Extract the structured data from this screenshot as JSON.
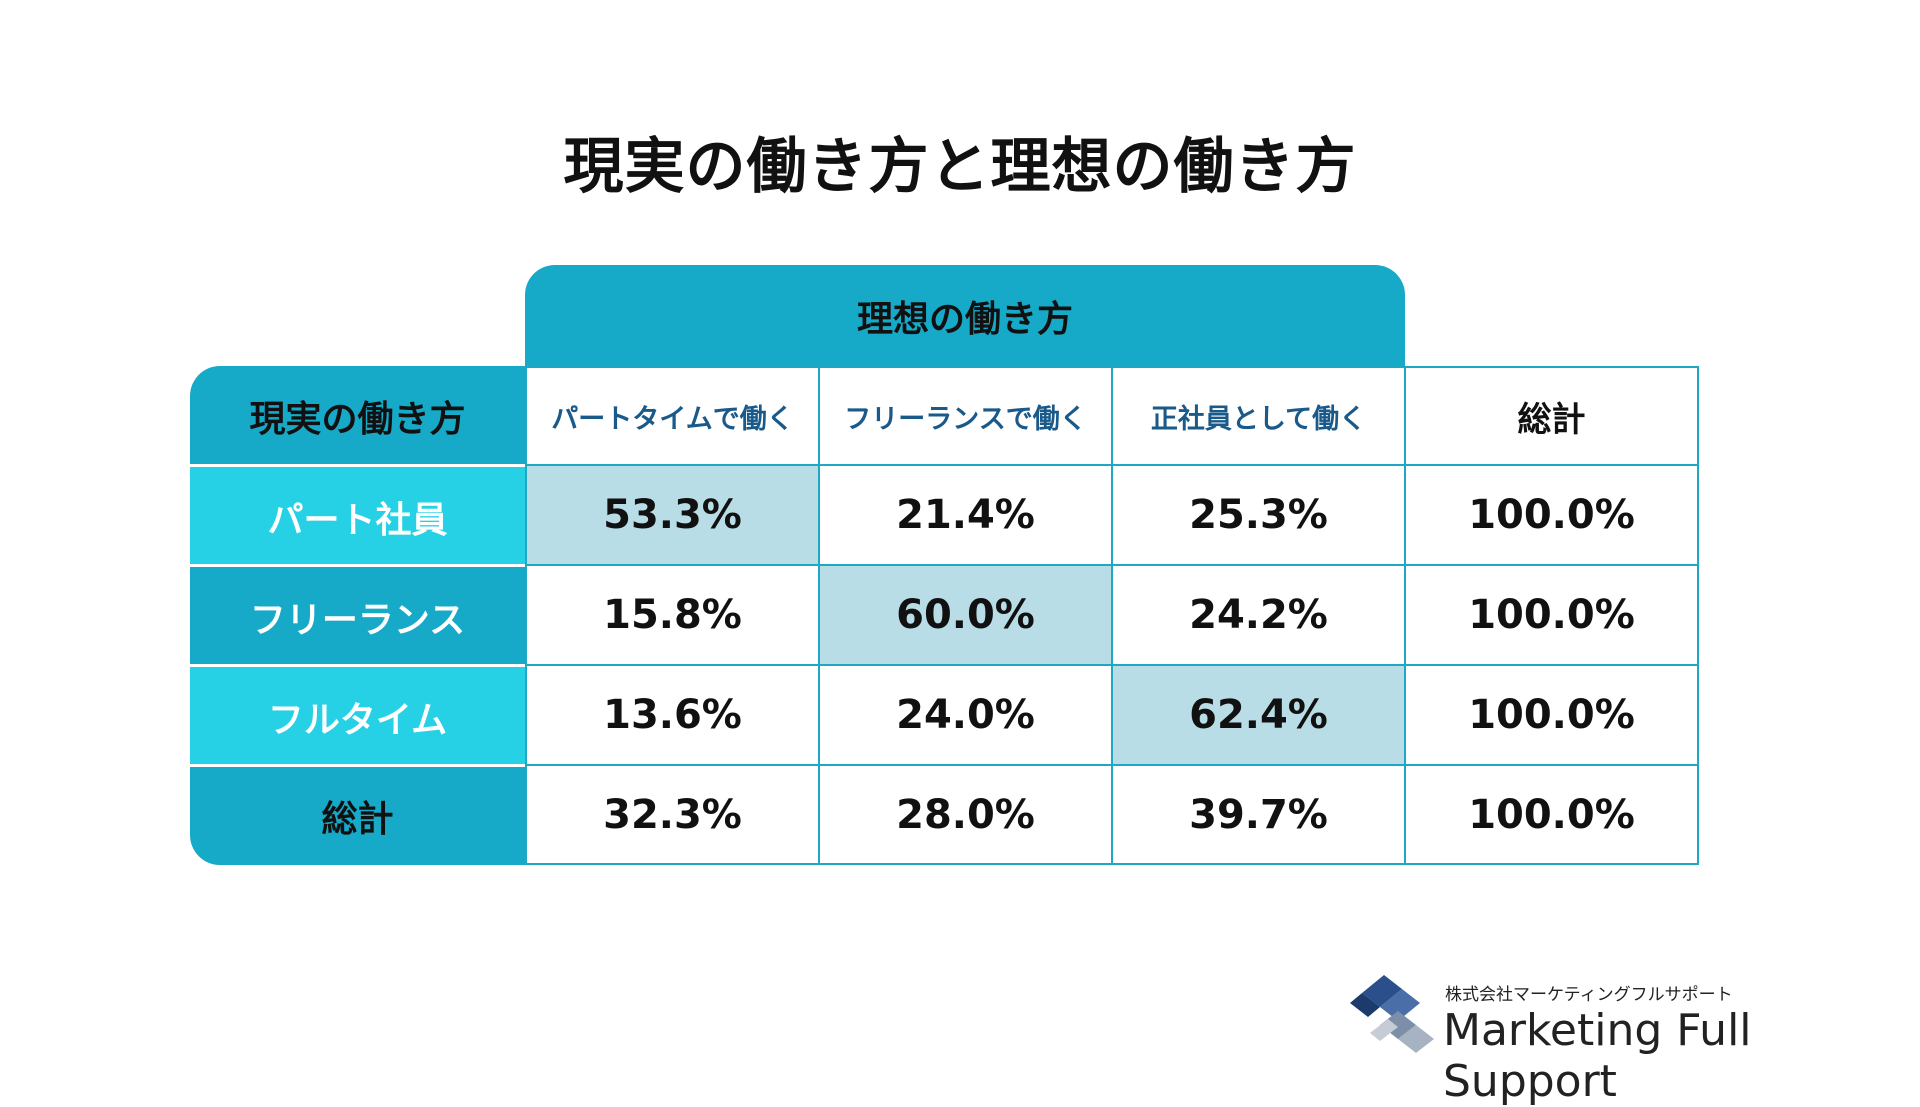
{
  "chart_data": {
    "type": "table",
    "title": "現実の働き方と理想の働き方",
    "column_group_label": "理想の働き方",
    "row_axis_label": "現実の働き方",
    "columns": [
      "パートタイムで働く",
      "フリーランスで働く",
      "正社員として働く",
      "総計"
    ],
    "rows": [
      {
        "label": "パート社員",
        "values": [
          "53.3%",
          "21.4%",
          "25.3%",
          "100.0%"
        ],
        "highlight": 0
      },
      {
        "label": "フリーランス",
        "values": [
          "15.8%",
          "60.0%",
          "24.2%",
          "100.0%"
        ],
        "highlight": 1
      },
      {
        "label": "フルタイム",
        "values": [
          "13.6%",
          "24.0%",
          "62.4%",
          "100.0%"
        ],
        "highlight": 2
      },
      {
        "label": "総計",
        "values": [
          "32.3%",
          "28.0%",
          "39.7%",
          "100.0%"
        ],
        "highlight": null
      }
    ]
  },
  "colors": {
    "header_teal": "#17a9c8",
    "row_light": "#27d1e5",
    "highlight_cell": "#b9dde6",
    "column_head_text": "#1a5a8a",
    "border": "#1fa8c3"
  },
  "logo": {
    "company_jp": "株式会社マーケティングフルサポート",
    "company_en": "Marketing Full Support"
  }
}
